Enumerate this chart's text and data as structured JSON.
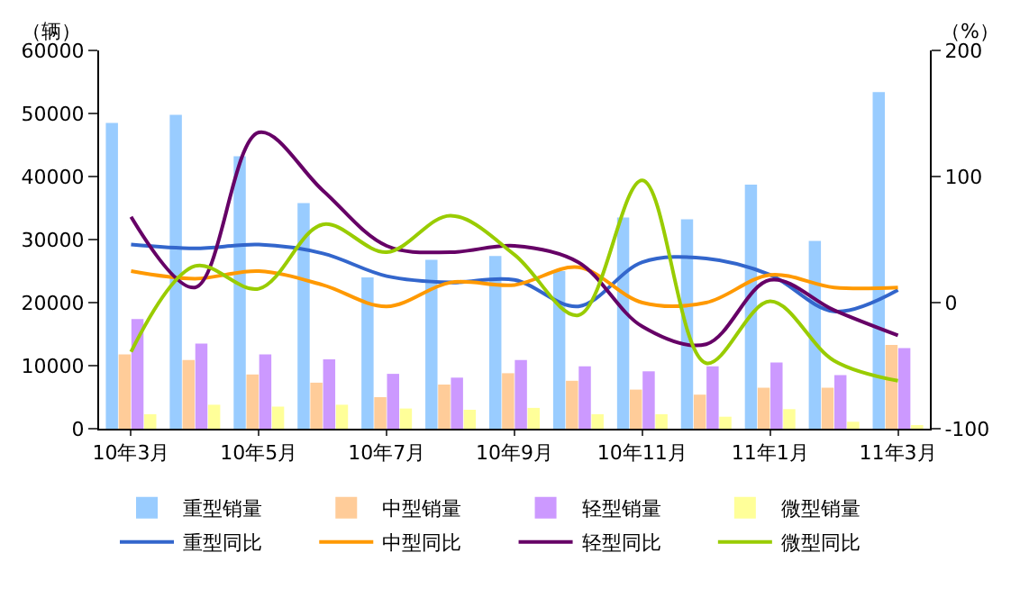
{
  "chart_data": {
    "type": "bar",
    "categories": [
      "10年3月",
      null,
      "10年5月",
      null,
      "10年7月",
      null,
      "10年9月",
      null,
      "10年11月",
      null,
      "11年1月",
      null,
      "11年3月"
    ],
    "ylabel": "（辆）",
    "y2label": "（%）",
    "ylim": [
      0,
      60000
    ],
    "yticks": [
      0,
      10000,
      20000,
      30000,
      40000,
      50000,
      60000
    ],
    "y2lim": [
      -100,
      200
    ],
    "y2ticks": [
      -100,
      0,
      100,
      200
    ],
    "grid": false,
    "legend": "bottom",
    "marker": "none",
    "line_style": "solid",
    "series": [
      {
        "name": "重型销量",
        "color": "#99ccff",
        "values": [
          48500,
          49800,
          43200,
          35800,
          24000,
          26800,
          27400,
          25000,
          33500,
          33200,
          38700,
          29800,
          53400
        ]
      },
      {
        "name": "中型销量",
        "color": "#ffcc99",
        "values": [
          11800,
          10900,
          8600,
          7300,
          5000,
          7000,
          8800,
          7600,
          6200,
          5400,
          6500,
          6500,
          13300
        ]
      },
      {
        "name": "轻型销量",
        "color": "#cc99ff",
        "values": [
          17400,
          13500,
          11800,
          11000,
          8700,
          8100,
          10900,
          9900,
          9100,
          9900,
          10500,
          8500,
          12800
        ]
      },
      {
        "name": "微型销量",
        "color": "#ffff99",
        "values": [
          2300,
          3800,
          3500,
          3800,
          3200,
          3000,
          3300,
          2300,
          2300,
          1900,
          3100,
          1100,
          500
        ]
      },
      {
        "name": "重型同比",
        "type": "line",
        "axis": "y2",
        "color": "#3366cc",
        "values": [
          46,
          43,
          46,
          39,
          21,
          16,
          18,
          -3,
          32,
          35,
          22,
          -7,
          10
        ]
      },
      {
        "name": "中型同比",
        "type": "line",
        "axis": "y2",
        "color": "#ff9900",
        "values": [
          25,
          19,
          25,
          14,
          -3,
          16,
          14,
          28,
          0,
          0,
          22,
          12,
          12
        ]
      },
      {
        "name": "轻型同比",
        "type": "line",
        "axis": "y2",
        "color": "#660066",
        "values": [
          68,
          12,
          135,
          89,
          45,
          40,
          45,
          32,
          -19,
          -33,
          18,
          -6,
          -26
        ]
      },
      {
        "name": "微型同比",
        "type": "line",
        "axis": "y2",
        "color": "#99cc00",
        "values": [
          -39,
          29,
          11,
          62,
          40,
          69,
          38,
          -10,
          97,
          -48,
          1,
          -46,
          -62
        ]
      }
    ]
  }
}
